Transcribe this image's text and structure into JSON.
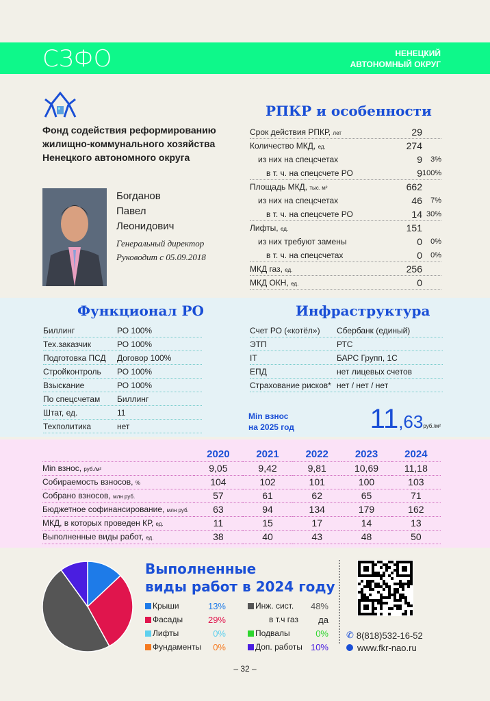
{
  "header": {
    "region_code": "СЗФО",
    "region_name_line1": "НЕНЕЦКИЙ",
    "region_name_line2": "АВТОНОМНЫЙ ОКРУГ",
    "accent": "#0ef88a"
  },
  "org": {
    "name_lines": [
      "Фонд содействия реформированию",
      "жилищно-коммунального хозяйства",
      "Ненецкого автономного округа"
    ],
    "person": [
      "Богданов",
      "Павел",
      "Леонидович"
    ],
    "role": "Генеральный директор",
    "since": "Руководит с 05.09.2018"
  },
  "rpkr": {
    "title": "РПКР и особенности",
    "rows": [
      {
        "label": "Срок действия РПКР,",
        "unit": "лет",
        "value": "29",
        "pct": "",
        "indent": 0
      },
      {
        "label": "Количество МКД,",
        "unit": "ед.",
        "value": "274",
        "pct": "",
        "indent": 0
      },
      {
        "label": "из них на спецсчетах",
        "unit": "",
        "value": "9",
        "pct": "3%",
        "indent": 1
      },
      {
        "label": "в т. ч. на спецсчете РО",
        "unit": "",
        "value": "9",
        "pct": "100%",
        "indent": 2
      },
      {
        "label": "Площадь МКД,",
        "unit": "тыс. м²",
        "value": "662",
        "pct": "",
        "indent": 0
      },
      {
        "label": "из них на спецсчетах",
        "unit": "",
        "value": "46",
        "pct": "7%",
        "indent": 1
      },
      {
        "label": "в т. ч. на спецсчете РО",
        "unit": "",
        "value": "14",
        "pct": "30%",
        "indent": 2
      },
      {
        "label": "Лифты,",
        "unit": "ед.",
        "value": "151",
        "pct": "",
        "indent": 0
      },
      {
        "label": "из них требуют замены",
        "unit": "",
        "value": "0",
        "pct": "0%",
        "indent": 1
      },
      {
        "label": "в т. ч. на спецсчетах",
        "unit": "",
        "value": "0",
        "pct": "0%",
        "indent": 2
      },
      {
        "label": "МКД газ,",
        "unit": "ед.",
        "value": "256",
        "pct": "",
        "indent": 0
      },
      {
        "label": "МКД ОКН,",
        "unit": "ед.",
        "value": "0",
        "pct": "",
        "indent": 0
      }
    ]
  },
  "func": {
    "title": "Функционал РО",
    "rows": [
      [
        "Биллинг",
        "РО 100%"
      ],
      [
        "Тех.заказчик",
        "РО 100%"
      ],
      [
        "Подготовка ПСД",
        "Договор 100%"
      ],
      [
        "Стройконтроль",
        "РО 100%"
      ],
      [
        "Взыскание",
        "РО 100%"
      ],
      [
        "По спецсчетам",
        "Биллинг"
      ],
      [
        "Штат, ед.",
        "11"
      ],
      [
        "Техполитика",
        "нет"
      ]
    ]
  },
  "infra": {
    "title": "Инфраструктура",
    "rows": [
      [
        "Счет РО («котёл»)",
        "Сбербанк (единый)"
      ],
      [
        "ЭТП",
        "РТС"
      ],
      [
        "IT",
        "БАРС Групп, 1С"
      ],
      [
        "ЕПД",
        "нет лицевых счетов"
      ],
      [
        "Страхование рисков*",
        "нет / нет / нет"
      ]
    ],
    "min_label_1": "Min взнос",
    "min_label_2": "на 2025 год",
    "min_int": "11",
    "min_dec": ",63",
    "min_unit": "руб./м²"
  },
  "years": {
    "headers": [
      "2020",
      "2021",
      "2022",
      "2023",
      "2024"
    ],
    "rows": [
      {
        "label": "Min взнос,",
        "unit": "руб./м²",
        "values": [
          "9,05",
          "9,42",
          "9,81",
          "10,69",
          "11,18"
        ]
      },
      {
        "label": "Собираемость взносов,",
        "unit": "%",
        "values": [
          "104",
          "102",
          "101",
          "100",
          "103"
        ]
      },
      {
        "label": "Собрано взносов,",
        "unit": "млн руб.",
        "values": [
          "57",
          "61",
          "62",
          "65",
          "71"
        ]
      },
      {
        "label": "Бюджетное софинансирование,",
        "unit": "млн руб.",
        "values": [
          "63",
          "94",
          "134",
          "179",
          "162"
        ]
      },
      {
        "label": "МКД, в которых проведен КР,",
        "unit": "ед.",
        "values": [
          "11",
          "15",
          "17",
          "14",
          "13"
        ]
      },
      {
        "label": "Выполненные виды работ,",
        "unit": "ед.",
        "values": [
          "38",
          "40",
          "43",
          "48",
          "50"
        ]
      }
    ]
  },
  "works": {
    "title_1": "Выполненные",
    "title_2": "виды работ в 2024 году",
    "legend": [
      {
        "label": "Крыши",
        "pct": "13%",
        "color": "#1e7be8",
        "value": 13
      },
      {
        "label": "Фасады",
        "pct": "29%",
        "color": "#e0154d",
        "value": 29
      },
      {
        "label": "Лифты",
        "pct": "0%",
        "color": "#5fd0ee",
        "value": 0
      },
      {
        "label": "Фундаменты",
        "pct": "0%",
        "color": "#f57a20",
        "value": 0
      },
      {
        "label": "Инж. сист.",
        "pct": "48%",
        "color": "#555555",
        "value": 48
      },
      {
        "label": "в т.ч газ",
        "pct": "да",
        "color": "",
        "value": null
      },
      {
        "label": "Подвалы",
        "pct": "0%",
        "color": "#2ed62e",
        "value": 0
      },
      {
        "label": "Доп. работы",
        "pct": "10%",
        "color": "#4a1ee0",
        "value": 10
      }
    ]
  },
  "contacts": {
    "phone": "8(818)532-16-52",
    "site": "www.fkr-nao.ru"
  },
  "page_number": "– 32 –"
}
